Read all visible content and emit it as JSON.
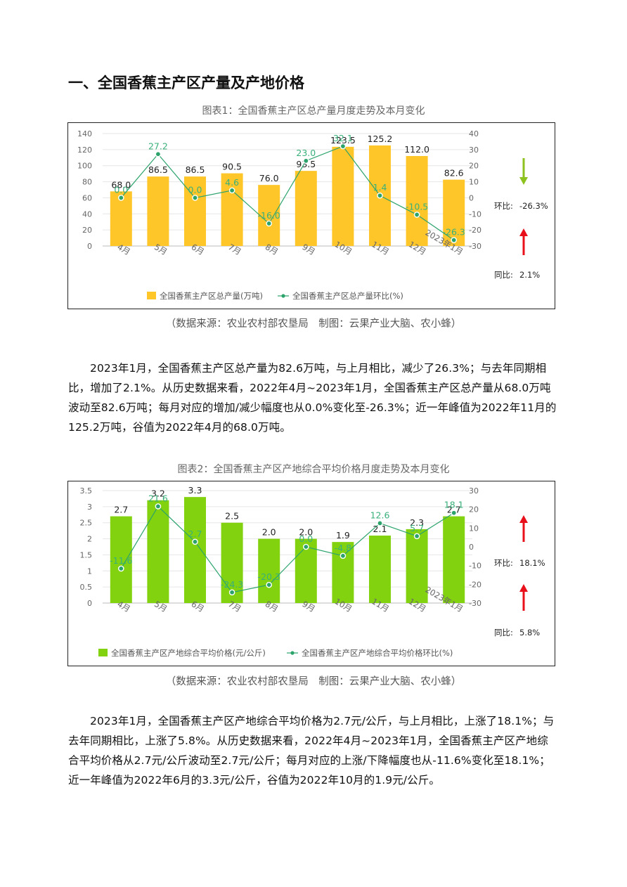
{
  "section": {
    "title": "一、全国香蕉主产区产量及产地价格"
  },
  "charts": [
    {
      "caption": "图表1：全国香蕉主产区总产量月度走势及本月变化",
      "source": "（数据来源：农业农村部农垦局　制图：云果产业大脑、农小蜂）",
      "side": {
        "mom_label": "环比:",
        "mom_value": "-26.3%",
        "mom_dir": "down",
        "yoy_label": "同比:",
        "yoy_value": "2.1%",
        "yoy_dir": "up"
      }
    },
    {
      "caption": "图表2：全国香蕉主产区产地综合平均价格月度走势及本月变化",
      "source": "（数据来源：农业农村部农垦局　制图：云果产业大脑、农小蜂）",
      "side": {
        "mom_label": "环比:",
        "mom_value": "18.1%",
        "mom_dir": "up",
        "yoy_label": "同比:",
        "yoy_value": "5.8%",
        "yoy_dir": "up"
      }
    }
  ],
  "chart_data": [
    {
      "type": "bar",
      "title": "图表1：全国香蕉主产区总产量月度走势及本月变化",
      "categories": [
        "4月",
        "5月",
        "6月",
        "7月",
        "8月",
        "9月",
        "10月",
        "11月",
        "12月",
        "2023年1月"
      ],
      "series": [
        {
          "name": "全国香蕉主产区总产量(万吨)",
          "type": "bar",
          "axis": "left",
          "color": "#FFC62A",
          "values": [
            68.0,
            86.5,
            86.5,
            90.5,
            76.0,
            93.5,
            123.5,
            125.2,
            112.0,
            82.6
          ]
        },
        {
          "name": "全国香蕉主产区总产量环比(%)",
          "type": "line",
          "axis": "right",
          "color": "#2BA36B",
          "values": [
            0.0,
            27.2,
            0.0,
            4.6,
            -16.0,
            23.0,
            32.1,
            1.4,
            -10.5,
            -26.3
          ]
        }
      ],
      "ylim": [
        0,
        140
      ],
      "yticks": [
        "0",
        "20",
        "40",
        "60",
        "80",
        "100",
        "120",
        "140"
      ],
      "y2lim": [
        -30,
        40
      ],
      "y2ticks": [
        "-30",
        "-20",
        "-10",
        "0",
        "10",
        "20",
        "30",
        "40"
      ],
      "bar_labels": [
        "68.0",
        "86.5",
        "86.5",
        "90.5",
        "76.0",
        "93.5",
        "123.5",
        "125.2",
        "112.0",
        "82.6"
      ],
      "line_labels": [
        "0.0",
        "27.2",
        "0.0",
        "4.6",
        "-16.0",
        "23.0",
        "32.1",
        "1.4",
        "-10.5",
        "-26.3"
      ],
      "legend_position": "bottom"
    },
    {
      "type": "bar",
      "title": "图表2：全国香蕉主产区产地综合平均价格月度走势及本月变化",
      "categories": [
        "4月",
        "5月",
        "6月",
        "7月",
        "8月",
        "9月",
        "10月",
        "11月",
        "12月",
        "2023年1月"
      ],
      "series": [
        {
          "name": "全国香蕉主产区产地综合平均价格(元/公斤)",
          "type": "bar",
          "axis": "left",
          "color": "#83D20F",
          "values": [
            2.7,
            3.2,
            3.3,
            2.5,
            2.0,
            2.0,
            1.9,
            2.1,
            2.3,
            2.7
          ]
        },
        {
          "name": "全国香蕉主产区产地综合平均价格环比(%)",
          "type": "line",
          "axis": "right",
          "color": "#2BA36B",
          "values": [
            -11.6,
            21.6,
            2.7,
            -24.3,
            -20.3,
            0.0,
            -4.8,
            12.6,
            5.7,
            18.1
          ]
        }
      ],
      "ylim": [
        0,
        3.5
      ],
      "yticks": [
        "0",
        "0.5",
        "1",
        "1.5",
        "2",
        "2.5",
        "3",
        "3.5"
      ],
      "y2lim": [
        -30,
        30
      ],
      "y2ticks": [
        "-30",
        "-20",
        "-10",
        "0",
        "10",
        "20",
        "30"
      ],
      "bar_labels": [
        "2.7",
        "3.2",
        "3.3",
        "2.5",
        "2.0",
        "2.0",
        "1.9",
        "2.1",
        "2.3",
        "2.7"
      ],
      "line_labels": [
        "-11.6",
        "21.6",
        "2.7",
        "-24.3",
        "-20.3",
        "0.0",
        "-4.8",
        "12.6",
        "5.7",
        "18.1"
      ],
      "legend_position": "bottom"
    }
  ],
  "paragraphs": [
    "2023年1月，全国香蕉主产区总产量为82.6万吨，与上月相比，减少了26.3%；与去年同期相比，增加了2.1%。从历史数据来看，2022年4月~2023年1月，全国香蕉主产区总产量从68.0万吨波动至82.6万吨；每月对应的增加/减少幅度也从0.0%变化至-26.3%；近一年峰值为2022年11月的125.2万吨，谷值为2022年4月的68.0万吨。",
    "2023年1月，全国香蕉主产区产地综合平均价格为2.7元/公斤，与上月相比，上涨了18.1%；与去年同期相比，上涨了5.8%。从历史数据来看，2022年4月~2023年1月，全国香蕉主产区产地综合平均价格从2.7元/公斤波动至2.7元/公斤；每月对应的上涨/下降幅度也从-11.6%变化至18.1%；近一年峰值为2022年6月的3.3元/公斤，谷值为2022年10月的1.9元/公斤。"
  ]
}
